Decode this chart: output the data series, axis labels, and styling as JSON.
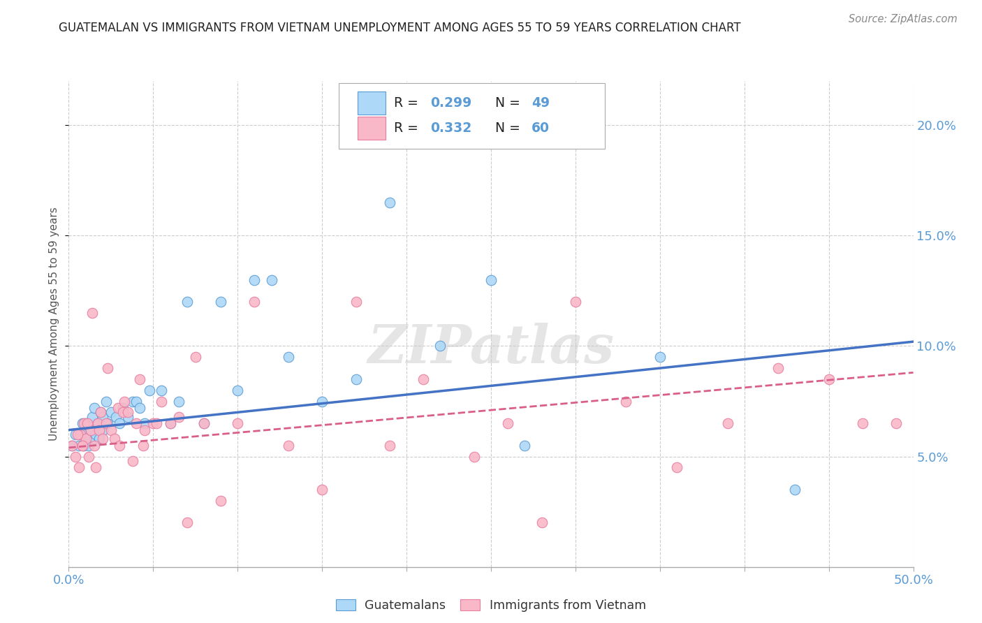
{
  "title": "GUATEMALAN VS IMMIGRANTS FROM VIETNAM UNEMPLOYMENT AMONG AGES 55 TO 59 YEARS CORRELATION CHART",
  "source": "Source: ZipAtlas.com",
  "ylabel": "Unemployment Among Ages 55 to 59 years",
  "xlim": [
    0.0,
    0.5
  ],
  "ylim": [
    0.0,
    0.22
  ],
  "yticks": [
    0.05,
    0.1,
    0.15,
    0.2
  ],
  "ytick_labels": [
    "5.0%",
    "10.0%",
    "15.0%",
    "20.0%"
  ],
  "xticks": [
    0.0,
    0.05,
    0.1,
    0.15,
    0.2,
    0.25,
    0.3,
    0.35,
    0.4,
    0.45,
    0.5
  ],
  "blue_color": "#ADD8F7",
  "pink_color": "#F9B8C8",
  "blue_edge_color": "#5B9BD5",
  "pink_edge_color": "#E87DA0",
  "blue_line_color": "#4472C4",
  "pink_line_color": "#D95F8A",
  "axis_label_color": "#5B9BD5",
  "text_color": "#333333",
  "grid_color": "#CCCCCC",
  "watermark": "ZIPatlas",
  "legend_r1": "R = 0.299",
  "legend_n1": "N = 49",
  "legend_r2": "R = 0.332",
  "legend_n2": "N = 60",
  "blue_scatter_x": [
    0.002,
    0.004,
    0.006,
    0.007,
    0.008,
    0.009,
    0.01,
    0.01,
    0.012,
    0.013,
    0.014,
    0.015,
    0.015,
    0.016,
    0.017,
    0.018,
    0.019,
    0.02,
    0.02,
    0.022,
    0.023,
    0.025,
    0.028,
    0.03,
    0.032,
    0.035,
    0.038,
    0.04,
    0.042,
    0.045,
    0.048,
    0.055,
    0.06,
    0.065,
    0.07,
    0.08,
    0.09,
    0.1,
    0.11,
    0.12,
    0.13,
    0.15,
    0.17,
    0.19,
    0.22,
    0.25,
    0.27,
    0.35,
    0.43
  ],
  "blue_scatter_y": [
    0.055,
    0.06,
    0.055,
    0.06,
    0.065,
    0.055,
    0.06,
    0.065,
    0.055,
    0.062,
    0.068,
    0.058,
    0.072,
    0.06,
    0.065,
    0.058,
    0.07,
    0.062,
    0.068,
    0.075,
    0.065,
    0.07,
    0.068,
    0.065,
    0.072,
    0.068,
    0.075,
    0.075,
    0.072,
    0.065,
    0.08,
    0.08,
    0.065,
    0.075,
    0.12,
    0.065,
    0.12,
    0.08,
    0.13,
    0.13,
    0.095,
    0.075,
    0.085,
    0.165,
    0.1,
    0.13,
    0.055,
    0.095,
    0.035
  ],
  "pink_scatter_x": [
    0.002,
    0.004,
    0.006,
    0.007,
    0.008,
    0.009,
    0.01,
    0.012,
    0.013,
    0.015,
    0.016,
    0.017,
    0.018,
    0.019,
    0.02,
    0.022,
    0.023,
    0.025,
    0.027,
    0.029,
    0.03,
    0.032,
    0.035,
    0.038,
    0.04,
    0.042,
    0.045,
    0.05,
    0.055,
    0.06,
    0.065,
    0.07,
    0.08,
    0.09,
    0.1,
    0.11,
    0.13,
    0.15,
    0.17,
    0.19,
    0.21,
    0.24,
    0.26,
    0.28,
    0.3,
    0.33,
    0.36,
    0.39,
    0.42,
    0.45,
    0.47,
    0.49,
    0.005,
    0.008,
    0.011,
    0.014,
    0.033,
    0.044,
    0.052,
    0.075
  ],
  "pink_scatter_y": [
    0.055,
    0.05,
    0.045,
    0.06,
    0.055,
    0.065,
    0.058,
    0.05,
    0.062,
    0.055,
    0.045,
    0.065,
    0.062,
    0.07,
    0.058,
    0.065,
    0.09,
    0.062,
    0.058,
    0.072,
    0.055,
    0.07,
    0.07,
    0.048,
    0.065,
    0.085,
    0.062,
    0.065,
    0.075,
    0.065,
    0.068,
    0.02,
    0.065,
    0.03,
    0.065,
    0.12,
    0.055,
    0.035,
    0.12,
    0.055,
    0.085,
    0.05,
    0.065,
    0.02,
    0.12,
    0.075,
    0.045,
    0.065,
    0.09,
    0.085,
    0.065,
    0.065,
    0.06,
    0.055,
    0.065,
    0.115,
    0.075,
    0.055,
    0.065,
    0.095
  ],
  "blue_trend_x": [
    0.0,
    0.5
  ],
  "blue_trend_y": [
    0.062,
    0.102
  ],
  "pink_trend_x": [
    0.0,
    0.5
  ],
  "pink_trend_y": [
    0.054,
    0.088
  ],
  "background_color": "#FFFFFF"
}
